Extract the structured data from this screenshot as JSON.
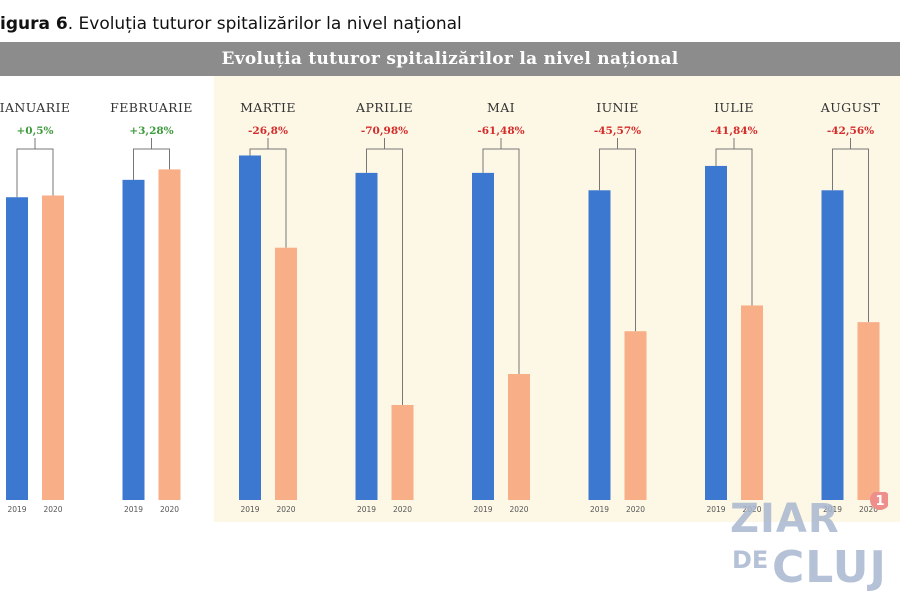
{
  "caption": {
    "prefix": "igura 6",
    "rest": ". Evoluția tuturor spitalizărilor la nivel național"
  },
  "chart_data": {
    "type": "bar",
    "title": "Evoluția tuturor spitalizărilor la nivel național",
    "categories": [
      "IANUARIE",
      "FEBRUARIE",
      "MARTIE",
      "APRILIE",
      "MAI",
      "IUNIE",
      "IULIE",
      "AUGUST"
    ],
    "series_labels": [
      "2019",
      "2020"
    ],
    "series": [
      {
        "name": "2019",
        "values": [
          87,
          92,
          99,
          94,
          94,
          89,
          96,
          89
        ]
      },
      {
        "name": "2020",
        "values": [
          87.5,
          95,
          72.5,
          27.3,
          36.2,
          48.5,
          55.9,
          51.1
        ]
      }
    ],
    "changes": [
      "+0,5%",
      "+3,28%",
      "-26,8%",
      "-70,98%",
      "-61,48%",
      "-45,57%",
      "-41,84%",
      "-42,56%"
    ],
    "ylim": [
      0,
      100
    ],
    "highlight_from_index": 2,
    "colors": {
      "bar_2019": "#3d78d0",
      "bar_2020": "#f8ae86",
      "positive": "#3d9a3d",
      "negative": "#d42b2b",
      "highlight_bg": "#fdf8e6",
      "bracket": "#777777"
    }
  },
  "watermark": {
    "line1": "ZIAR",
    "line2": "DE",
    "line3": "CLUJ",
    "badge": "1"
  }
}
